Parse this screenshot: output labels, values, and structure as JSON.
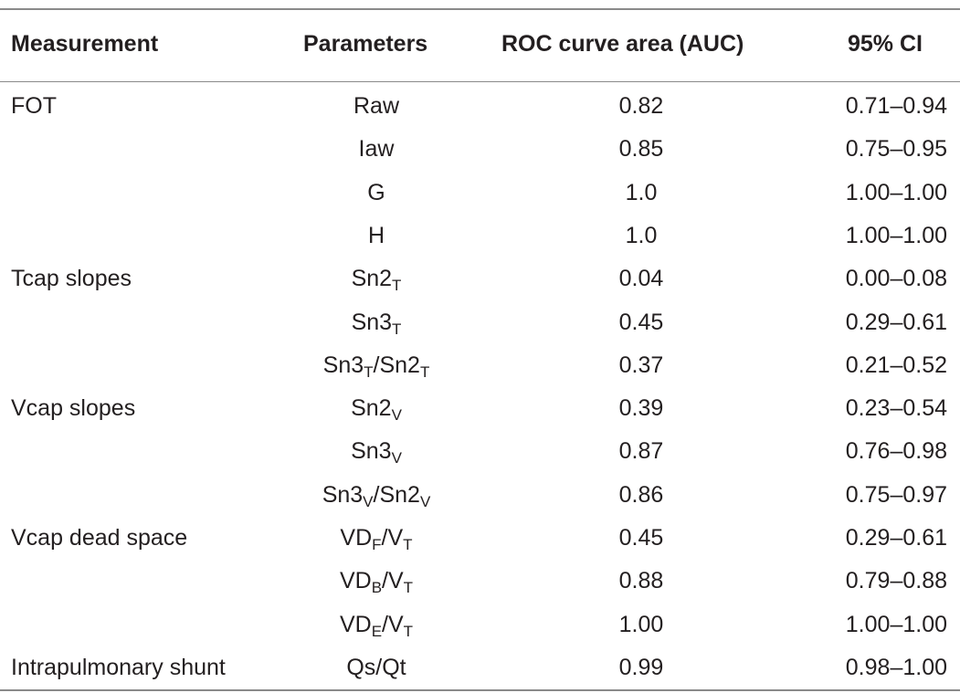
{
  "headers": {
    "measurement": "Measurement",
    "parameters": "Parameters",
    "auc": "ROC curve area (AUC)",
    "ci": "95% CI"
  },
  "rows": [
    {
      "measurement": "FOT",
      "param": {
        "base": "Raw",
        "sub": "",
        "mid": "",
        "sub2": ""
      },
      "auc": "0.82",
      "ci": "0.71–0.94"
    },
    {
      "measurement": "",
      "param": {
        "base": "Iaw",
        "sub": "",
        "mid": "",
        "sub2": ""
      },
      "auc": "0.85",
      "ci": "0.75–0.95"
    },
    {
      "measurement": "",
      "param": {
        "base": "G",
        "sub": "",
        "mid": "",
        "sub2": ""
      },
      "auc": "1.0",
      "ci": "1.00–1.00"
    },
    {
      "measurement": "",
      "param": {
        "base": "H",
        "sub": "",
        "mid": "",
        "sub2": ""
      },
      "auc": "1.0",
      "ci": "1.00–1.00"
    },
    {
      "measurement": "Tcap slopes",
      "param": {
        "base": "Sn2",
        "sub": "T",
        "mid": "",
        "sub2": ""
      },
      "auc": "0.04",
      "ci": "0.00–0.08"
    },
    {
      "measurement": "",
      "param": {
        "base": "Sn3",
        "sub": "T",
        "mid": "",
        "sub2": ""
      },
      "auc": "0.45",
      "ci": "0.29–0.61"
    },
    {
      "measurement": "",
      "param": {
        "base": "Sn3",
        "sub": "T",
        "mid": "/Sn2",
        "sub2": "T"
      },
      "auc": "0.37",
      "ci": "0.21–0.52"
    },
    {
      "measurement": "Vcap slopes",
      "param": {
        "base": "Sn2",
        "sub": "V",
        "mid": "",
        "sub2": ""
      },
      "auc": "0.39",
      "ci": "0.23–0.54"
    },
    {
      "measurement": "",
      "param": {
        "base": "Sn3",
        "sub": "V",
        "mid": "",
        "sub2": ""
      },
      "auc": "0.87",
      "ci": "0.76–0.98"
    },
    {
      "measurement": "",
      "param": {
        "base": "Sn3",
        "sub": "V",
        "mid": "/Sn2",
        "sub2": "V"
      },
      "auc": "0.86",
      "ci": "0.75–0.97"
    },
    {
      "measurement": "Vcap dead space",
      "param": {
        "base": "VD",
        "sub": "F",
        "mid": "/V",
        "sub2": "T"
      },
      "auc": "0.45",
      "ci": "0.29–0.61"
    },
    {
      "measurement": "",
      "param": {
        "base": "VD",
        "sub": "B",
        "mid": "/V",
        "sub2": "T"
      },
      "auc": "0.88",
      "ci": "0.79–0.88"
    },
    {
      "measurement": "",
      "param": {
        "base": "VD",
        "sub": "E",
        "mid": "/V",
        "sub2": "T"
      },
      "auc": "1.00",
      "ci": "1.00–1.00"
    },
    {
      "measurement": "Intrapulmonary shunt",
      "param": {
        "base": "Qs/Qt",
        "sub": "",
        "mid": "",
        "sub2": ""
      },
      "auc": "0.99",
      "ci": "0.98–1.00"
    }
  ]
}
